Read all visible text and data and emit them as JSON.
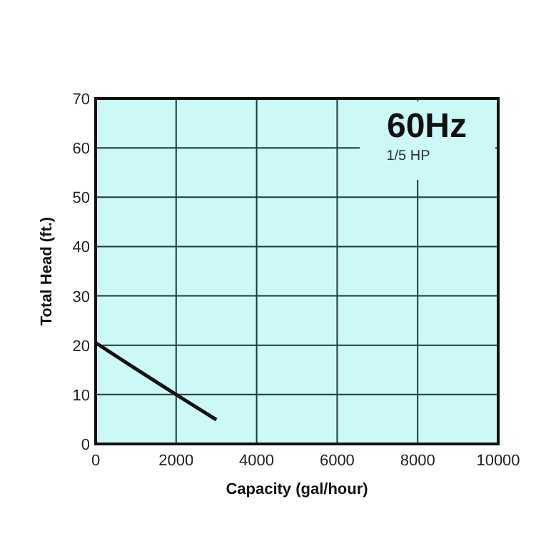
{
  "chart_data": {
    "type": "line",
    "title": "60Hz",
    "subtitle": "1/5 HP",
    "xlabel": "Capacity (gal/hour)",
    "ylabel": "Total Head (ft.)",
    "series": [
      {
        "color": "#111111",
        "x": [
          0,
          1000,
          2000,
          3000
        ],
        "values": [
          20.5,
          15.2,
          10,
          4.9
        ]
      }
    ],
    "xlim": [
      0,
      10000
    ],
    "xticks": [
      0,
      2000,
      4000,
      6000,
      8000,
      10000
    ],
    "ylim": [
      0,
      70
    ],
    "yticks": [
      0,
      10,
      20,
      30,
      40,
      50,
      60,
      70
    ],
    "grid": true,
    "marker": "none",
    "line_style": "solid"
  }
}
